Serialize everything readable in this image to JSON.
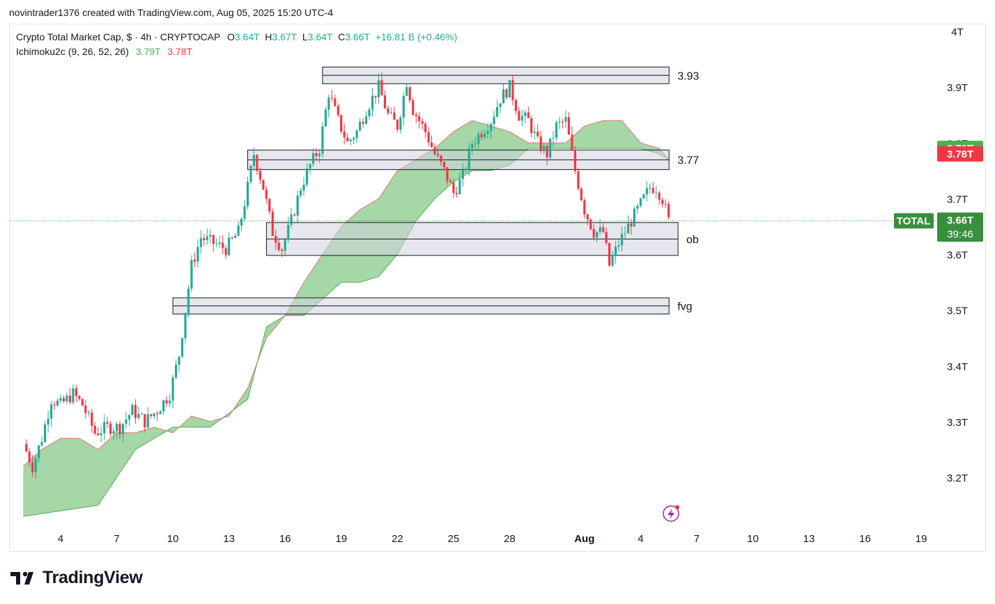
{
  "header": {
    "attribution": "novintrader1376 created with TradingView.com, Aug 05, 2025 15:20 UTC-4"
  },
  "legend": {
    "symbol_title": "Crypto Total Market Cap, $ · 4h · CRYPTOCAP",
    "o_label": "O",
    "o_value": "3.64T",
    "h_label": "H",
    "h_value": "3.67T",
    "l_label": "L",
    "l_value": "3.64T",
    "c_label": "C",
    "c_value": "3.66T",
    "change": "+16.81 B (+0.46%)",
    "indicator_name": "Ichimoku2c (9, 26, 52, 26)",
    "indicator_v1": "3.79T",
    "indicator_v2": "3.78T"
  },
  "brand": {
    "name": "TradingView"
  },
  "colors": {
    "up": "#22ab94",
    "down": "#f23645",
    "cloud": "#4caf50",
    "cloud_edge": "#e57373",
    "zone_fill": "#d1d4dc",
    "zone_edge": "#131722",
    "price_badge": "#388e3c",
    "grid_text": "#131722"
  },
  "chart_data": {
    "type": "candlestick",
    "symbol": "TOTAL",
    "timeframe": "4h",
    "price_axis": {
      "ticks": [
        "4T",
        "3.9T",
        "3.8T",
        "3.7T",
        "3.6T",
        "3.5T",
        "3.4T",
        "3.3T",
        "3.2T"
      ],
      "tick_values": [
        4.0,
        3.9,
        3.8,
        3.7,
        3.6,
        3.5,
        3.4,
        3.3,
        3.2
      ],
      "range": [
        3.13,
        4.0
      ]
    },
    "time_axis": {
      "labels": [
        "4",
        "7",
        "10",
        "13",
        "16",
        "19",
        "22",
        "25",
        "28",
        "Aug",
        "4",
        "7",
        "10",
        "13",
        "16",
        "19"
      ],
      "bold_labels": [
        "Aug"
      ],
      "range_days": [
        "Jul 2 00:00",
        "Aug 20"
      ]
    },
    "badges": [
      {
        "label": "3.79T",
        "value": 3.79,
        "color": "#4caf50"
      },
      {
        "label": "3.78T",
        "value": 3.78,
        "color": "#f23645"
      },
      {
        "label": "3.66T",
        "value": 3.66,
        "color": "#388e3c",
        "countdown": "39:46",
        "symbol_tag": "TOTAL"
      }
    ],
    "last_price": 3.66,
    "zones": [
      {
        "label": "3.93",
        "top": 3.936,
        "bottom": 3.906,
        "from": "Jul 18",
        "to": "Aug 5"
      },
      {
        "label": "3.77",
        "top": 3.787,
        "bottom": 3.752,
        "from": "Jul 14",
        "to": "Aug 5"
      },
      {
        "label": "ob",
        "top": 3.657,
        "bottom": 3.598,
        "from": "Jul 15",
        "to": "Aug 6"
      },
      {
        "label": "fvg",
        "top": 3.522,
        "bottom": 3.493,
        "from": "Jul 10",
        "to": "Aug 5"
      }
    ],
    "price_points": [
      [
        "Jul 2 00:00",
        3.26
      ],
      [
        "Jul 2 12:00",
        3.22
      ],
      [
        "Jul 3 00:00",
        3.27
      ],
      [
        "Jul 3 12:00",
        3.34
      ],
      [
        "Jul 4 00:00",
        3.33
      ],
      [
        "Jul 4 16:00",
        3.35
      ],
      [
        "Jul 5 04:00",
        3.33
      ],
      [
        "Jul 5 20:00",
        3.28
      ],
      [
        "Jul 6 12:00",
        3.29
      ],
      [
        "Jul 7 04:00",
        3.29
      ],
      [
        "Jul 7 20:00",
        3.32
      ],
      [
        "Jul 8 12:00",
        3.3
      ],
      [
        "Jul 9 04:00",
        3.32
      ],
      [
        "Jul 9 20:00",
        3.35
      ],
      [
        "Jul 10 08:00",
        3.42
      ],
      [
        "Jul 10 16:00",
        3.5
      ],
      [
        "Jul 11 00:00",
        3.58
      ],
      [
        "Jul 11 12:00",
        3.63
      ],
      [
        "Jul 12 04:00",
        3.62
      ],
      [
        "Jul 12 20:00",
        3.61
      ],
      [
        "Jul 13 12:00",
        3.64
      ],
      [
        "Jul 14 00:00",
        3.72
      ],
      [
        "Jul 14 08:00",
        3.78
      ],
      [
        "Jul 14 20:00",
        3.72
      ],
      [
        "Jul 15 08:00",
        3.64
      ],
      [
        "Jul 15 20:00",
        3.61
      ],
      [
        "Jul 16 08:00",
        3.66
      ],
      [
        "Jul 16 20:00",
        3.72
      ],
      [
        "Jul 17 08:00",
        3.76
      ],
      [
        "Jul 17 20:00",
        3.79
      ],
      [
        "Jul 18 08:00",
        3.89
      ],
      [
        "Jul 18 20:00",
        3.84
      ],
      [
        "Jul 19 08:00",
        3.8
      ],
      [
        "Jul 19 20:00",
        3.82
      ],
      [
        "Jul 20 08:00",
        3.86
      ],
      [
        "Jul 21 00:00",
        3.9
      ],
      [
        "Jul 21 12:00",
        3.85
      ],
      [
        "Jul 22 00:00",
        3.83
      ],
      [
        "Jul 22 12:00",
        3.91
      ],
      [
        "Jul 22 20:00",
        3.86
      ],
      [
        "Jul 23 12:00",
        3.82
      ],
      [
        "Jul 24 00:00",
        3.78
      ],
      [
        "Jul 24 12:00",
        3.75
      ],
      [
        "Jul 25 00:00",
        3.71
      ],
      [
        "Jul 25 12:00",
        3.74
      ],
      [
        "Jul 26 00:00",
        3.8
      ],
      [
        "Jul 26 12:00",
        3.82
      ],
      [
        "Jul 27 00:00",
        3.84
      ],
      [
        "Jul 27 12:00",
        3.88
      ],
      [
        "Jul 28 00:00",
        3.9
      ],
      [
        "Jul 28 12:00",
        3.85
      ],
      [
        "Jul 29 00:00",
        3.84
      ],
      [
        "Jul 29 12:00",
        3.8
      ],
      [
        "Jul 30 00:00",
        3.78
      ],
      [
        "Jul 30 12:00",
        3.83
      ],
      [
        "Jul 31 00:00",
        3.84
      ],
      [
        "Jul 31 12:00",
        3.75
      ],
      [
        "Aug 1 00:00",
        3.68
      ],
      [
        "Aug 1 12:00",
        3.64
      ],
      [
        "Aug 2 00:00",
        3.64
      ],
      [
        "Aug 2 08:00",
        3.58
      ],
      [
        "Aug 2 20:00",
        3.62
      ],
      [
        "Aug 3 12:00",
        3.66
      ],
      [
        "Aug 4 00:00",
        3.69
      ],
      [
        "Aug 4 12:00",
        3.72
      ],
      [
        "Aug 4 20:00",
        3.72
      ],
      [
        "Aug 5 04:00",
        3.7
      ],
      [
        "Aug 5 12:00",
        3.66
      ]
    ],
    "cloud": {
      "top_edge": [
        [
          "Jul 2 00:00",
          3.22
        ],
        [
          "Jul 3 00:00",
          3.25
        ],
        [
          "Jul 4 00:00",
          3.27
        ],
        [
          "Jul 5 00:00",
          3.27
        ],
        [
          "Jul 6 00:00",
          3.25
        ],
        [
          "Jul 7 00:00",
          3.28
        ],
        [
          "Jul 8 00:00",
          3.28
        ],
        [
          "Jul 9 00:00",
          3.29
        ],
        [
          "Jul 10 00:00",
          3.28
        ],
        [
          "Jul 11 00:00",
          3.31
        ],
        [
          "Jul 12 00:00",
          3.3
        ],
        [
          "Jul 13 00:00",
          3.31
        ],
        [
          "Jul 14 00:00",
          3.36
        ],
        [
          "Jul 15 00:00",
          3.45
        ],
        [
          "Jul 16 00:00",
          3.49
        ],
        [
          "Jul 17 00:00",
          3.55
        ],
        [
          "Jul 18 00:00",
          3.6
        ],
        [
          "Jul 19 00:00",
          3.65
        ],
        [
          "Jul 20 00:00",
          3.68
        ],
        [
          "Jul 21 00:00",
          3.7
        ],
        [
          "Jul 22 00:00",
          3.75
        ],
        [
          "Jul 23 00:00",
          3.77
        ],
        [
          "Jul 24 00:00",
          3.79
        ],
        [
          "Jul 25 00:00",
          3.82
        ],
        [
          "Jul 26 00:00",
          3.84
        ],
        [
          "Jul 27 00:00",
          3.83
        ],
        [
          "Jul 28 00:00",
          3.82
        ],
        [
          "Jul 29 00:00",
          3.8
        ],
        [
          "Jul 30 00:00",
          3.8
        ],
        [
          "Jul 31 00:00",
          3.8
        ],
        [
          "Aug 1 00:00",
          3.83
        ],
        [
          "Aug 2 00:00",
          3.84
        ],
        [
          "Aug 3 00:00",
          3.84
        ],
        [
          "Aug 4 00:00",
          3.8
        ],
        [
          "Aug 5 00:00",
          3.79
        ],
        [
          "Aug 5 12:00",
          3.77
        ]
      ],
      "bottom_edge": [
        [
          "Jul 2 00:00",
          3.13
        ],
        [
          "Jul 4 00:00",
          3.14
        ],
        [
          "Jul 6 00:00",
          3.15
        ],
        [
          "Jul 8 00:00",
          3.25
        ],
        [
          "Jul 10 00:00",
          3.29
        ],
        [
          "Jul 12 00:00",
          3.29
        ],
        [
          "Jul 14 00:00",
          3.34
        ],
        [
          "Jul 15 00:00",
          3.47
        ],
        [
          "Jul 16 00:00",
          3.49
        ],
        [
          "Jul 17 00:00",
          3.49
        ],
        [
          "Jul 18 00:00",
          3.52
        ],
        [
          "Jul 19 00:00",
          3.55
        ],
        [
          "Jul 20 00:00",
          3.55
        ],
        [
          "Jul 21 00:00",
          3.56
        ],
        [
          "Jul 22 00:00",
          3.6
        ],
        [
          "Jul 23 00:00",
          3.66
        ],
        [
          "Jul 24 00:00",
          3.7
        ],
        [
          "Jul 25 00:00",
          3.73
        ],
        [
          "Jul 26 00:00",
          3.75
        ],
        [
          "Jul 27 00:00",
          3.75
        ],
        [
          "Jul 28 00:00",
          3.76
        ],
        [
          "Jul 29 00:00",
          3.79
        ],
        [
          "Jul 30 00:00",
          3.79
        ],
        [
          "Jul 31 00:00",
          3.79
        ],
        [
          "Aug 1 00:00",
          3.79
        ],
        [
          "Aug 2 00:00",
          3.79
        ],
        [
          "Aug 3 00:00",
          3.79
        ],
        [
          "Aug 4 00:00",
          3.79
        ],
        [
          "Aug 5 00:00",
          3.78
        ],
        [
          "Aug 5 12:00",
          3.77
        ]
      ]
    }
  }
}
